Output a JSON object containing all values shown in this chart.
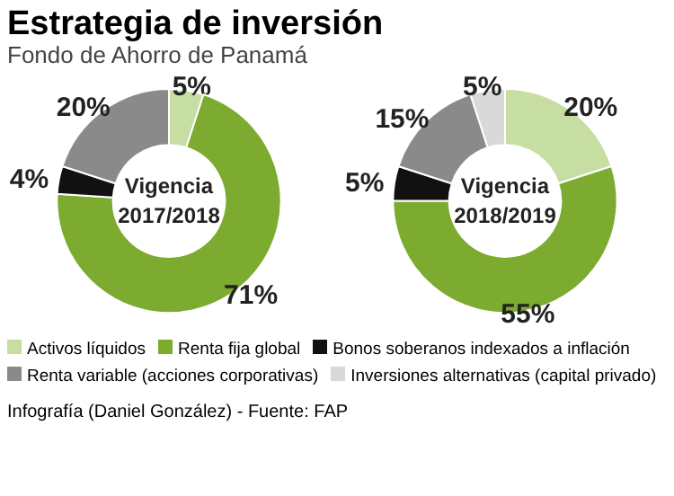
{
  "chart_data": {
    "type": "donut",
    "title": "Estrategia de inversión",
    "subtitle": "Fondo de Ahorro de Panamá",
    "legend": "bottom",
    "annotations": [
      "Infografía (Daniel González) - Fuente: FAP"
    ],
    "categories": [
      "Activos líquidos",
      "Renta fija global",
      "Bonos soberanos indexados a inflación",
      "Renta variable (acciones corporativas)",
      "Inversiones alternativas (capital privado)"
    ],
    "colors": [
      "#c6dea2",
      "#7cab2f",
      "#111111",
      "#8a8a8a",
      "#d9d9d9"
    ],
    "series": [
      {
        "name": "Vigencia\n2017/2018",
        "values": [
          5,
          71,
          4,
          20,
          null
        ],
        "value_labels": [
          "5%",
          "71%",
          "4%",
          "20%",
          null
        ]
      },
      {
        "name": "Vigencia\n2018/2019",
        "values": [
          20,
          55,
          5,
          15,
          5
        ],
        "value_labels": [
          "20%",
          "55%",
          "5%",
          "15%",
          "5%"
        ]
      }
    ]
  }
}
